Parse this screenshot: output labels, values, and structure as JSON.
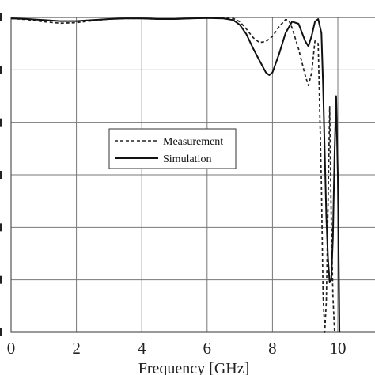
{
  "chart_data": {
    "type": "line",
    "xlabel": "Frequency [GHz]",
    "ylabel": "",
    "xlim": [
      0,
      11
    ],
    "ylim": [
      -6,
      0
    ],
    "x_ticks": [
      0,
      2,
      4,
      6,
      8,
      10
    ],
    "x_tick_labels": [
      "0",
      "2",
      "4",
      "6",
      "8",
      "10"
    ],
    "y_ticks": [
      0,
      -1,
      -2,
      -3,
      -4,
      -5,
      -6
    ],
    "grid": true,
    "legend_position": "center",
    "series": [
      {
        "name": "Measurement",
        "style": "dashed",
        "color": "#222222",
        "x": [
          0,
          0.5,
          1,
          1.5,
          2,
          2.5,
          3,
          3.5,
          4,
          4.5,
          5,
          5.5,
          6,
          6.5,
          6.8,
          7,
          7.2,
          7.4,
          7.6,
          7.8,
          8,
          8.2,
          8.4,
          8.5,
          8.6,
          8.8,
          9,
          9.1,
          9.2,
          9.3,
          9.4,
          9.5,
          9.55,
          9.6,
          9.65,
          9.7,
          9.75,
          9.8,
          9.85,
          9.9
        ],
        "y": [
          -0.02,
          -0.04,
          -0.08,
          -0.11,
          -0.1,
          -0.06,
          -0.03,
          -0.02,
          -0.02,
          -0.03,
          -0.03,
          -0.02,
          -0.01,
          -0.01,
          -0.02,
          -0.08,
          -0.22,
          -0.38,
          -0.48,
          -0.46,
          -0.36,
          -0.18,
          -0.04,
          -0.05,
          -0.2,
          -0.6,
          -1.1,
          -1.3,
          -1.05,
          -0.45,
          -0.5,
          -3.2,
          -5.3,
          -6,
          -5.4,
          -3.6,
          -1.7,
          -3.8,
          -5.3,
          -6
        ]
      },
      {
        "name": "Simulation",
        "style": "solid",
        "color": "#111111",
        "x": [
          0,
          0.5,
          1,
          1.5,
          2,
          2.5,
          3,
          3.5,
          4,
          4.5,
          5,
          5.5,
          6,
          6.5,
          6.8,
          7,
          7.2,
          7.4,
          7.6,
          7.8,
          7.9,
          8,
          8.2,
          8.4,
          8.6,
          8.8,
          9,
          9.1,
          9.2,
          9.3,
          9.4,
          9.5,
          9.55,
          9.6,
          9.65,
          9.7,
          9.75,
          9.8,
          9.85,
          9.9,
          9.95,
          10,
          10.05
        ],
        "y": [
          -0.02,
          -0.03,
          -0.05,
          -0.07,
          -0.07,
          -0.05,
          -0.03,
          -0.02,
          -0.02,
          -0.03,
          -0.03,
          -0.02,
          -0.01,
          -0.02,
          -0.05,
          -0.14,
          -0.32,
          -0.58,
          -0.82,
          -1.05,
          -1.1,
          -1.05,
          -0.7,
          -0.3,
          -0.08,
          -0.12,
          -0.45,
          -0.55,
          -0.35,
          -0.08,
          -0.03,
          -0.3,
          -1.3,
          -2.6,
          -3.8,
          -4.6,
          -5.05,
          -5.0,
          -4.2,
          -2.6,
          -1.5,
          -3.0,
          -6
        ]
      }
    ]
  }
}
